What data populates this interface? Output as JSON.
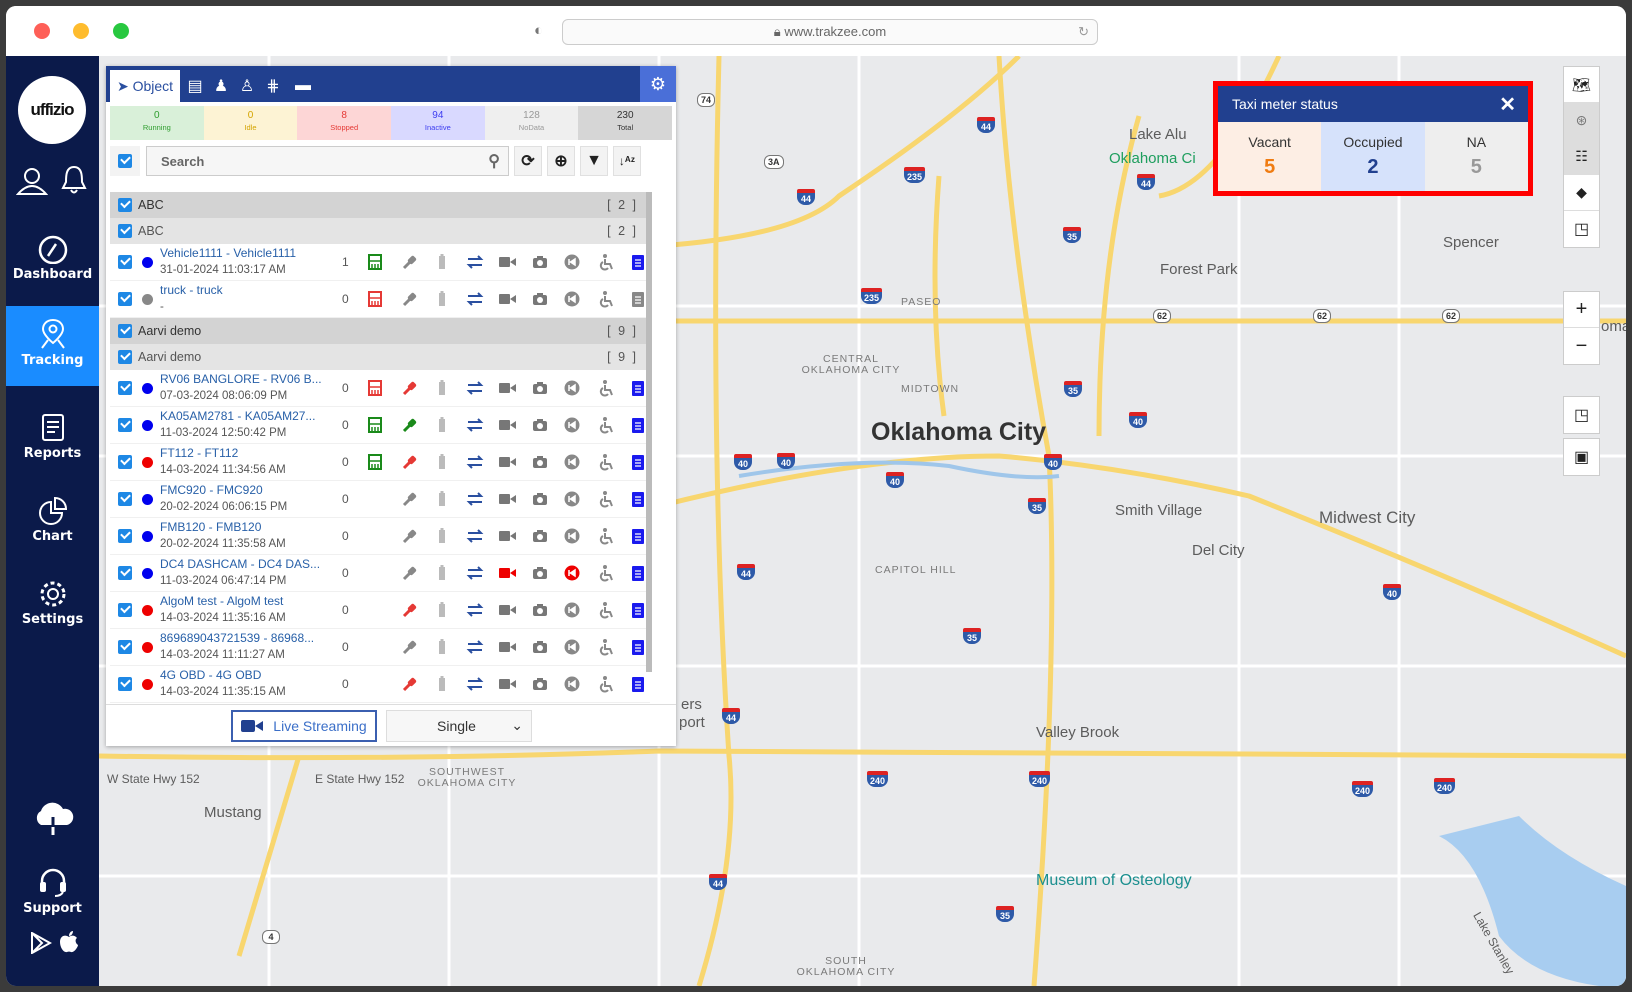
{
  "browser": {
    "url": "www.trakzee.com"
  },
  "sidebar": {
    "logo": "uffizio",
    "items": [
      {
        "label": "Dashboard"
      },
      {
        "label": "Tracking"
      },
      {
        "label": "Reports"
      },
      {
        "label": "Chart"
      },
      {
        "label": "Settings"
      },
      {
        "label": "Support"
      }
    ],
    "active": "Tracking"
  },
  "panel": {
    "tabs": [
      {
        "label": "Object",
        "icon": "navigation-arrow-icon"
      },
      {
        "icon": "clipboard-icon"
      },
      {
        "icon": "driver-icon"
      },
      {
        "icon": "person-icon"
      },
      {
        "icon": "fence-icon"
      },
      {
        "icon": "trailer-icon"
      }
    ],
    "stats": [
      {
        "value": "0",
        "label": "Running",
        "color": "#2e9e2e",
        "bg": "#d9f0d9"
      },
      {
        "value": "0",
        "label": "Idle",
        "color": "#d4a400",
        "bg": "#fdf3d4"
      },
      {
        "value": "8",
        "label": "Stopped",
        "color": "#e53935",
        "bg": "#fdd6d6"
      },
      {
        "value": "94",
        "label": "Inactive",
        "color": "#3d3df0",
        "bg": "#d9d9ff"
      },
      {
        "value": "128",
        "label": "NoData",
        "color": "#999999",
        "bg": "#efefef"
      },
      {
        "value": "230",
        "label": "Total",
        "color": "#333333",
        "bg": "#d6d6d6"
      }
    ],
    "search_placeholder": "Search",
    "groups": [
      {
        "name": "ABC",
        "count": "[ 2 ]",
        "sub": "ABC",
        "sub_count": "[ 2 ]",
        "vehicles": [
          {
            "name": "Vehicle1111 - Vehicle1111",
            "time": "31-01-2024 11:03:17 AM",
            "status": "#0000ee",
            "count": "1",
            "meter": "#1a8a1a",
            "key": "#888888",
            "video": "#777777",
            "rewind": "#888888",
            "clip": "#1a1aee"
          },
          {
            "name": "truck - truck",
            "time": "-",
            "status": "#888888",
            "count": "0",
            "meter": "#e53935",
            "key": "#888888",
            "video": "#777777",
            "rewind": "#888888",
            "clip": "#888888"
          }
        ]
      },
      {
        "name": "Aarvi demo",
        "count": "[ 9 ]",
        "sub": "Aarvi demo",
        "sub_count": "[ 9 ]",
        "vehicles": [
          {
            "name": "RV06 BANGLORE - RV06 B...",
            "time": "07-03-2024 08:06:09 PM",
            "status": "#0000ee",
            "count": "0",
            "meter": "#e53935",
            "key": "#e53935",
            "video": "#777777",
            "rewind": "#888888",
            "clip": "#1a1aee"
          },
          {
            "name": "KA05AM2781 - KA05AM27...",
            "time": "11-03-2024 12:50:42 PM",
            "status": "#0000ee",
            "count": "0",
            "meter": "#1a8a1a",
            "key": "#1a8a1a",
            "video": "#777777",
            "rewind": "#888888",
            "clip": "#1a1aee"
          },
          {
            "name": "FT112 - FT112",
            "time": "14-03-2024 11:34:56 AM",
            "status": "#ee0000",
            "count": "0",
            "meter": "#1a8a1a",
            "key": "#e53935",
            "video": "#777777",
            "rewind": "#888888",
            "clip": "#1a1aee"
          },
          {
            "name": "FMC920 - FMC920",
            "time": "20-02-2024 06:06:15 PM",
            "status": "#0000ee",
            "count": "0",
            "meter": "",
            "key": "#888888",
            "video": "#777777",
            "rewind": "#888888",
            "clip": "#1a1aee"
          },
          {
            "name": "FMB120 - FMB120",
            "time": "20-02-2024 11:35:58 AM",
            "status": "#0000ee",
            "count": "0",
            "meter": "",
            "key": "#888888",
            "video": "#777777",
            "rewind": "#888888",
            "clip": "#1a1aee"
          },
          {
            "name": "DC4 DASHCAM - DC4 DAS...",
            "time": "11-03-2024 06:47:14 PM",
            "status": "#0000ee",
            "count": "0",
            "meter": "",
            "key": "#888888",
            "video": "#ee0000",
            "rewind": "#ee0000",
            "clip": "#1a1aee"
          },
          {
            "name": "AlgoM test - AlgoM test",
            "time": "14-03-2024 11:35:16 AM",
            "status": "#ee0000",
            "count": "0",
            "meter": "",
            "key": "#e53935",
            "video": "#777777",
            "rewind": "#888888",
            "clip": "#1a1aee"
          },
          {
            "name": "869689043721539 - 86968...",
            "time": "14-03-2024 11:11:27 AM",
            "status": "#ee0000",
            "count": "0",
            "meter": "",
            "key": "#888888",
            "video": "#777777",
            "rewind": "#888888",
            "clip": "#1a1aee"
          },
          {
            "name": "4G OBD - 4G OBD",
            "time": "14-03-2024 11:35:15 AM",
            "status": "#ee0000",
            "count": "0",
            "meter": "",
            "key": "#e53935",
            "video": "#777777",
            "rewind": "#888888",
            "clip": "#1a1aee"
          }
        ]
      }
    ],
    "footer": {
      "live_streaming": "Live Streaming",
      "mode": "Single"
    }
  },
  "taxi_meter": {
    "title": "Taxi meter status",
    "cells": [
      {
        "label": "Vacant",
        "value": "5",
        "color": "#f07c12",
        "bg": "#fdeee4"
      },
      {
        "label": "Occupied",
        "value": "2",
        "color": "#21408f",
        "bg": "#d6e2fb"
      },
      {
        "label": "NA",
        "value": "5",
        "color": "#999999",
        "bg": "#eeeeee"
      }
    ]
  },
  "map_controls": {
    "zoom_in": "+",
    "zoom_out": "−"
  },
  "map": {
    "city": "Oklahoma City",
    "places": [
      "Forest Park",
      "Spencer",
      "Midwest City",
      "Smith Village",
      "Del City",
      "Valley Brook",
      "Mustang",
      "Lake Alu",
      "Oklahoma Ci",
      "oma",
      "ers",
      "port"
    ],
    "districts": [
      "PASEO",
      "CENTRAL OKLAHOMA CITY",
      "MIDTOWN",
      "CAPITOL HILL",
      "SOUTHWEST OKLAHOMA CITY",
      "SOUTH OKLAHOMA CITY"
    ],
    "roads": [
      "W State Hwy 152",
      "E State Hwy 152"
    ],
    "poi": "Museum of Osteology",
    "lake": "Lake Stanley",
    "shields": [
      "74",
      "44",
      "3A",
      "44",
      "235",
      "35",
      "44",
      "235",
      "35",
      "40",
      "40",
      "40",
      "40",
      "40",
      "35",
      "44",
      "35",
      "44",
      "240",
      "240",
      "240",
      "240",
      "44",
      "35",
      "62",
      "62",
      "62",
      "4",
      "40"
    ]
  }
}
